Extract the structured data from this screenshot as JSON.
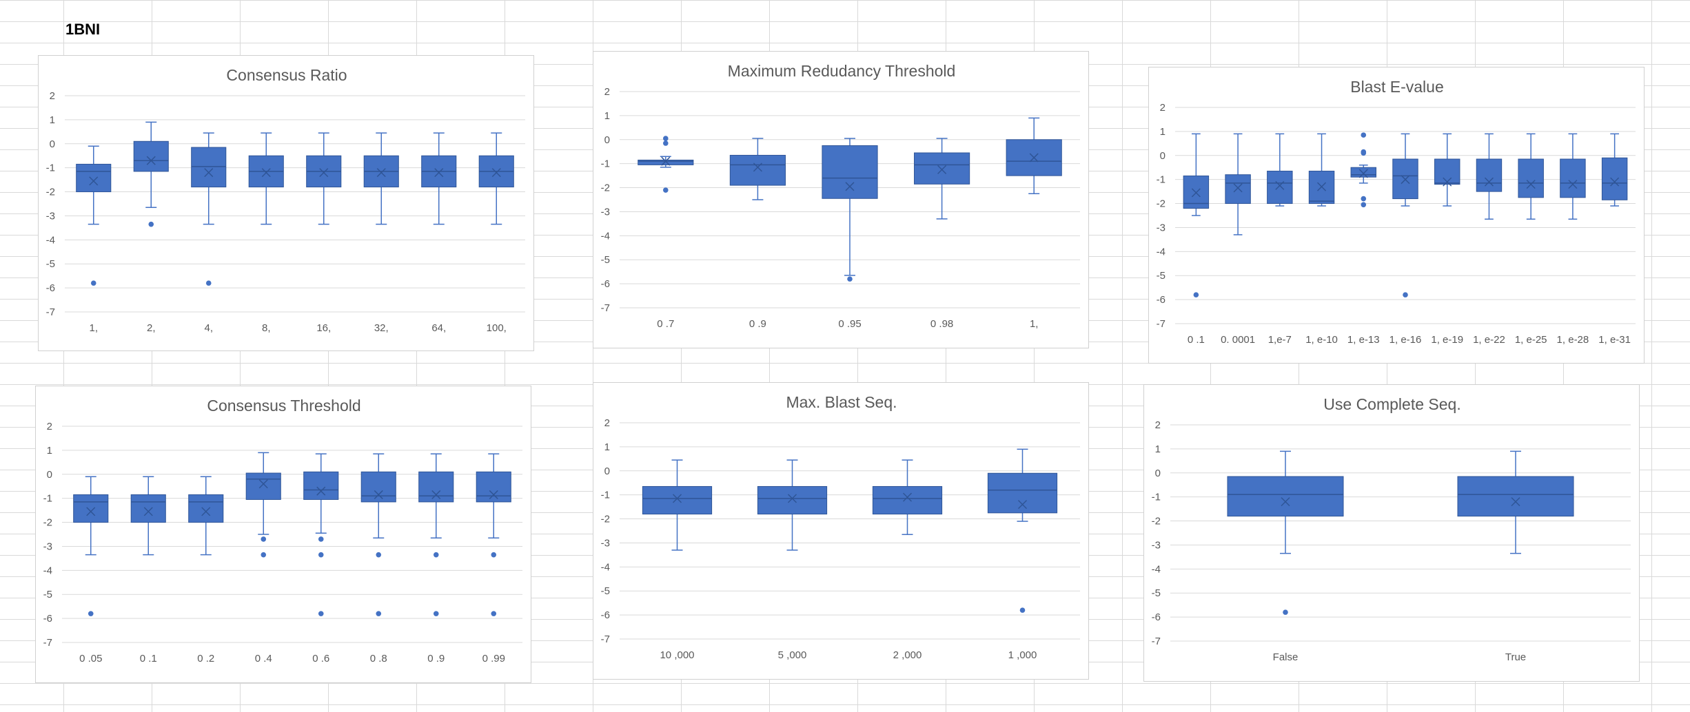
{
  "sheet": {
    "label": "1BNI"
  },
  "colors": {
    "box_fill": "#4472C4",
    "box_stroke": "#2F5597",
    "grid": "#d9d9d9",
    "text": "#595959"
  },
  "chart_data": [
    {
      "type": "box",
      "title": "Consensus Ratio",
      "ylim": [
        -7,
        2
      ],
      "yticks": [
        2,
        1,
        0,
        -1,
        -2,
        -3,
        -4,
        -5,
        -6,
        -7
      ],
      "categories": [
        "1,",
        "2,",
        "4,",
        "8,",
        "16,",
        "32,",
        "64,",
        "100,"
      ],
      "boxes": [
        {
          "min": -3.35,
          "q1": -2.0,
          "median": -1.15,
          "q3": -0.85,
          "max": -0.1,
          "mean": -1.55,
          "outliers": [
            -5.8
          ]
        },
        {
          "min": -2.65,
          "q1": -1.15,
          "median": -0.7,
          "q3": 0.1,
          "max": 0.9,
          "mean": -0.7,
          "outliers": [
            -3.35
          ]
        },
        {
          "min": -3.35,
          "q1": -1.8,
          "median": -0.95,
          "q3": -0.15,
          "max": 0.45,
          "mean": -1.2,
          "outliers": [
            -5.8
          ]
        },
        {
          "min": -3.35,
          "q1": -1.8,
          "median": -1.15,
          "q3": -0.5,
          "max": 0.45,
          "mean": -1.2,
          "outliers": []
        },
        {
          "min": -3.35,
          "q1": -1.8,
          "median": -1.15,
          "q3": -0.5,
          "max": 0.45,
          "mean": -1.2,
          "outliers": []
        },
        {
          "min": -3.35,
          "q1": -1.8,
          "median": -1.15,
          "q3": -0.5,
          "max": 0.45,
          "mean": -1.2,
          "outliers": []
        },
        {
          "min": -3.35,
          "q1": -1.8,
          "median": -1.15,
          "q3": -0.5,
          "max": 0.45,
          "mean": -1.2,
          "outliers": []
        },
        {
          "min": -3.35,
          "q1": -1.8,
          "median": -1.15,
          "q3": -0.5,
          "max": 0.45,
          "mean": -1.2,
          "outliers": []
        }
      ]
    },
    {
      "type": "box",
      "title": "Maximum Redudancy Threshold",
      "ylim": [
        -7,
        2
      ],
      "yticks": [
        2,
        1,
        0,
        -1,
        -2,
        -3,
        -4,
        -5,
        -6,
        -7
      ],
      "categories": [
        "0 .7",
        "0 .9",
        "0 .95",
        "0 .98",
        "1,"
      ],
      "boxes": [
        {
          "min": -1.15,
          "q1": -1.05,
          "median": -0.9,
          "q3": -0.85,
          "max": -0.7,
          "mean": -0.9,
          "outliers": [
            0.05,
            -0.15,
            -2.1
          ]
        },
        {
          "min": -2.5,
          "q1": -1.9,
          "median": -1.05,
          "q3": -0.65,
          "max": 0.05,
          "mean": -1.15,
          "outliers": []
        },
        {
          "min": -5.65,
          "q1": -2.45,
          "median": -1.6,
          "q3": -0.25,
          "max": 0.05,
          "mean": -1.95,
          "outliers": [
            -5.8
          ]
        },
        {
          "min": -3.3,
          "q1": -1.85,
          "median": -1.05,
          "q3": -0.55,
          "max": 0.05,
          "mean": -1.25,
          "outliers": []
        },
        {
          "min": -2.25,
          "q1": -1.5,
          "median": -0.9,
          "q3": 0.0,
          "max": 0.9,
          "mean": -0.75,
          "outliers": []
        }
      ]
    },
    {
      "type": "box",
      "title": "Blast E-value",
      "ylim": [
        -7,
        2
      ],
      "yticks": [
        2,
        1,
        0,
        -1,
        -2,
        -3,
        -4,
        -5,
        -6,
        -7
      ],
      "categories": [
        "0 .1",
        "0. 0001",
        "1,e-7",
        "1, e-10",
        "1, e-13",
        "1, e-16",
        "1, e-19",
        "1, e-22",
        "1, e-25",
        "1, e-28",
        "1, e-31"
      ],
      "boxes": [
        {
          "min": -2.5,
          "q1": -2.2,
          "median": -2.0,
          "q3": -0.85,
          "max": 0.9,
          "mean": -1.55,
          "outliers": [
            -5.8
          ]
        },
        {
          "min": -3.3,
          "q1": -2.0,
          "median": -1.15,
          "q3": -0.8,
          "max": 0.9,
          "mean": -1.35,
          "outliers": []
        },
        {
          "min": -2.1,
          "q1": -2.0,
          "median": -1.15,
          "q3": -0.65,
          "max": 0.9,
          "mean": -1.25,
          "outliers": []
        },
        {
          "min": -2.1,
          "q1": -2.0,
          "median": -1.9,
          "q3": -0.65,
          "max": 0.9,
          "mean": -1.3,
          "outliers": []
        },
        {
          "min": -1.15,
          "q1": -0.9,
          "median": -0.8,
          "q3": -0.5,
          "max": -0.4,
          "mean": -0.75,
          "outliers": [
            0.85,
            0.15,
            0.1,
            -1.8,
            -2.05
          ]
        },
        {
          "min": -2.1,
          "q1": -1.8,
          "median": -0.85,
          "q3": -0.15,
          "max": 0.9,
          "mean": -1.0,
          "outliers": [
            -5.8
          ]
        },
        {
          "min": -2.1,
          "q1": -1.2,
          "median": -1.15,
          "q3": -0.15,
          "max": 0.9,
          "mean": -1.1,
          "outliers": []
        },
        {
          "min": -2.65,
          "q1": -1.5,
          "median": -1.15,
          "q3": -0.15,
          "max": 0.9,
          "mean": -1.1,
          "outliers": []
        },
        {
          "min": -2.65,
          "q1": -1.75,
          "median": -1.15,
          "q3": -0.15,
          "max": 0.9,
          "mean": -1.2,
          "outliers": []
        },
        {
          "min": -2.65,
          "q1": -1.75,
          "median": -1.15,
          "q3": -0.15,
          "max": 0.9,
          "mean": -1.2,
          "outliers": []
        },
        {
          "min": -2.1,
          "q1": -1.85,
          "median": -1.15,
          "q3": -0.1,
          "max": 0.9,
          "mean": -1.1,
          "outliers": []
        }
      ]
    },
    {
      "type": "box",
      "title": "Consensus Threshold",
      "ylim": [
        -7,
        2
      ],
      "yticks": [
        2,
        1,
        0,
        -1,
        -2,
        -3,
        -4,
        -5,
        -6,
        -7
      ],
      "categories": [
        "0 .05",
        "0 .1",
        "0 .2",
        "0 .4",
        "0 .6",
        "0 .8",
        "0 .9",
        "0 .99"
      ],
      "boxes": [
        {
          "min": -3.35,
          "q1": -2.0,
          "median": -1.15,
          "q3": -0.85,
          "max": -0.1,
          "mean": -1.55,
          "outliers": [
            -5.8
          ]
        },
        {
          "min": -3.35,
          "q1": -2.0,
          "median": -1.15,
          "q3": -0.85,
          "max": -0.1,
          "mean": -1.55,
          "outliers": []
        },
        {
          "min": -3.35,
          "q1": -2.0,
          "median": -1.15,
          "q3": -0.85,
          "max": -0.1,
          "mean": -1.55,
          "outliers": []
        },
        {
          "min": -2.5,
          "q1": -1.05,
          "median": -0.2,
          "q3": 0.05,
          "max": 0.9,
          "mean": -0.4,
          "outliers": [
            -2.7,
            -3.35
          ]
        },
        {
          "min": -2.45,
          "q1": -1.05,
          "median": -0.65,
          "q3": 0.1,
          "max": 0.85,
          "mean": -0.7,
          "outliers": [
            -2.7,
            -3.35,
            -5.8
          ]
        },
        {
          "min": -2.65,
          "q1": -1.15,
          "median": -0.9,
          "q3": 0.1,
          "max": 0.85,
          "mean": -0.85,
          "outliers": [
            -3.35,
            -5.8
          ]
        },
        {
          "min": -2.65,
          "q1": -1.15,
          "median": -0.9,
          "q3": 0.1,
          "max": 0.85,
          "mean": -0.85,
          "outliers": [
            -3.35,
            -5.8
          ]
        },
        {
          "min": -2.65,
          "q1": -1.15,
          "median": -0.9,
          "q3": 0.1,
          "max": 0.85,
          "mean": -0.85,
          "outliers": [
            -3.35,
            -5.8
          ]
        }
      ]
    },
    {
      "type": "box",
      "title": "Max. Blast Seq.",
      "ylim": [
        -7,
        2
      ],
      "yticks": [
        2,
        1,
        0,
        -1,
        -2,
        -3,
        -4,
        -5,
        -6,
        -7
      ],
      "categories": [
        "10 ,000",
        "5 ,000",
        "2 ,000",
        "1 ,000"
      ],
      "boxes": [
        {
          "min": -3.3,
          "q1": -1.8,
          "median": -1.15,
          "q3": -0.65,
          "max": 0.45,
          "mean": -1.15,
          "outliers": []
        },
        {
          "min": -3.3,
          "q1": -1.8,
          "median": -1.15,
          "q3": -0.65,
          "max": 0.45,
          "mean": -1.15,
          "outliers": []
        },
        {
          "min": -2.65,
          "q1": -1.8,
          "median": -1.15,
          "q3": -0.65,
          "max": 0.45,
          "mean": -1.1,
          "outliers": []
        },
        {
          "min": -2.1,
          "q1": -1.75,
          "median": -0.8,
          "q3": -0.1,
          "max": 0.9,
          "mean": -1.4,
          "outliers": [
            -5.8
          ]
        }
      ]
    },
    {
      "type": "box",
      "title": "Use Complete Seq.",
      "ylim": [
        -7,
        2
      ],
      "yticks": [
        2,
        1,
        0,
        -1,
        -2,
        -3,
        -4,
        -5,
        -6,
        -7
      ],
      "categories": [
        "False",
        "True"
      ],
      "boxes": [
        {
          "min": -3.35,
          "q1": -1.8,
          "median": -0.9,
          "q3": -0.15,
          "max": 0.9,
          "mean": -1.2,
          "outliers": [
            -5.8
          ]
        },
        {
          "min": -3.35,
          "q1": -1.8,
          "median": -0.9,
          "q3": -0.15,
          "max": 0.9,
          "mean": -1.2,
          "outliers": []
        }
      ]
    }
  ]
}
